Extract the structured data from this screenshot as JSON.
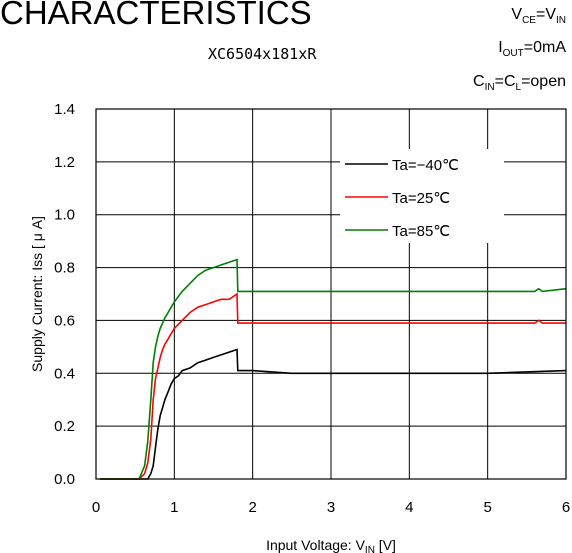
{
  "header": {
    "title": "CHARACTERISTICS",
    "subtitle": "XC6504x181xR",
    "conditions": [
      {
        "sym": "V",
        "sub": "CE",
        "rest": "=V",
        "sub2": "IN"
      },
      {
        "sym": "I",
        "sub": "OUT",
        "rest": "=0mA",
        "sub2": ""
      },
      {
        "sym": "C",
        "sub": "IN",
        "rest": "=C",
        "sub2": "L",
        "tail": "=open"
      }
    ]
  },
  "chart_data": {
    "type": "line",
    "xlabel": "Input Voltage: V",
    "xlabel_sub": "IN",
    "xlabel_unit": " [V]",
    "ylabel": "Supply Current: Iss [ μ A]",
    "xlim": [
      0,
      6
    ],
    "ylim": [
      0,
      1.4
    ],
    "xticks": [
      "0",
      "1",
      "2",
      "3",
      "4",
      "5",
      "6"
    ],
    "yticks": [
      "0.0",
      "0.2",
      "0.4",
      "0.6",
      "0.8",
      "1.0",
      "1.2",
      "1.4"
    ],
    "grid": true,
    "legend_position": "top-right",
    "series": [
      {
        "name": "Ta=−40℃",
        "color": "#000000",
        "points": [
          [
            0.05,
            0.0
          ],
          [
            0.55,
            0.0
          ],
          [
            0.62,
            0.0
          ],
          [
            0.66,
            0.0
          ],
          [
            0.7,
            0.02
          ],
          [
            0.73,
            0.05
          ],
          [
            0.76,
            0.12
          ],
          [
            0.79,
            0.19
          ],
          [
            0.82,
            0.24
          ],
          [
            0.85,
            0.27
          ],
          [
            0.88,
            0.3
          ],
          [
            0.92,
            0.33
          ],
          [
            0.96,
            0.36
          ],
          [
            1.0,
            0.38
          ],
          [
            1.05,
            0.39
          ],
          [
            1.1,
            0.41
          ],
          [
            1.2,
            0.42
          ],
          [
            1.3,
            0.44
          ],
          [
            1.4,
            0.45
          ],
          [
            1.5,
            0.46
          ],
          [
            1.6,
            0.47
          ],
          [
            1.7,
            0.48
          ],
          [
            1.8,
            0.49
          ],
          [
            1.81,
            0.41
          ],
          [
            1.9,
            0.41
          ],
          [
            2.0,
            0.41
          ],
          [
            2.5,
            0.4
          ],
          [
            3.0,
            0.4
          ],
          [
            4.0,
            0.4
          ],
          [
            5.0,
            0.4
          ],
          [
            6.0,
            0.41
          ]
        ]
      },
      {
        "name": "Ta=25℃",
        "color": "#ff0000",
        "points": [
          [
            0.05,
            0.0
          ],
          [
            0.55,
            0.0
          ],
          [
            0.62,
            0.02
          ],
          [
            0.66,
            0.06
          ],
          [
            0.7,
            0.15
          ],
          [
            0.73,
            0.3
          ],
          [
            0.76,
            0.38
          ],
          [
            0.79,
            0.42
          ],
          [
            0.82,
            0.46
          ],
          [
            0.85,
            0.49
          ],
          [
            0.88,
            0.51
          ],
          [
            0.92,
            0.53
          ],
          [
            0.96,
            0.55
          ],
          [
            1.0,
            0.57
          ],
          [
            1.1,
            0.6
          ],
          [
            1.2,
            0.63
          ],
          [
            1.3,
            0.65
          ],
          [
            1.4,
            0.66
          ],
          [
            1.5,
            0.67
          ],
          [
            1.6,
            0.68
          ],
          [
            1.7,
            0.68
          ],
          [
            1.8,
            0.7
          ],
          [
            1.81,
            0.59
          ],
          [
            2.0,
            0.59
          ],
          [
            3.0,
            0.59
          ],
          [
            4.0,
            0.59
          ],
          [
            5.0,
            0.59
          ],
          [
            5.6,
            0.59
          ],
          [
            5.65,
            0.6
          ],
          [
            5.7,
            0.59
          ],
          [
            6.0,
            0.59
          ]
        ]
      },
      {
        "name": "Ta=85℃",
        "color": "#008000",
        "points": [
          [
            0.05,
            0.0
          ],
          [
            0.55,
            0.0
          ],
          [
            0.62,
            0.05
          ],
          [
            0.66,
            0.14
          ],
          [
            0.7,
            0.3
          ],
          [
            0.73,
            0.44
          ],
          [
            0.76,
            0.5
          ],
          [
            0.79,
            0.54
          ],
          [
            0.82,
            0.57
          ],
          [
            0.85,
            0.59
          ],
          [
            0.88,
            0.61
          ],
          [
            0.92,
            0.63
          ],
          [
            0.96,
            0.65
          ],
          [
            1.0,
            0.67
          ],
          [
            1.1,
            0.71
          ],
          [
            1.2,
            0.74
          ],
          [
            1.3,
            0.77
          ],
          [
            1.4,
            0.79
          ],
          [
            1.5,
            0.8
          ],
          [
            1.6,
            0.81
          ],
          [
            1.7,
            0.82
          ],
          [
            1.8,
            0.83
          ],
          [
            1.81,
            0.71
          ],
          [
            2.0,
            0.71
          ],
          [
            3.0,
            0.71
          ],
          [
            4.0,
            0.71
          ],
          [
            5.0,
            0.71
          ],
          [
            5.6,
            0.71
          ],
          [
            5.65,
            0.72
          ],
          [
            5.7,
            0.71
          ],
          [
            6.0,
            0.72
          ]
        ]
      }
    ]
  }
}
